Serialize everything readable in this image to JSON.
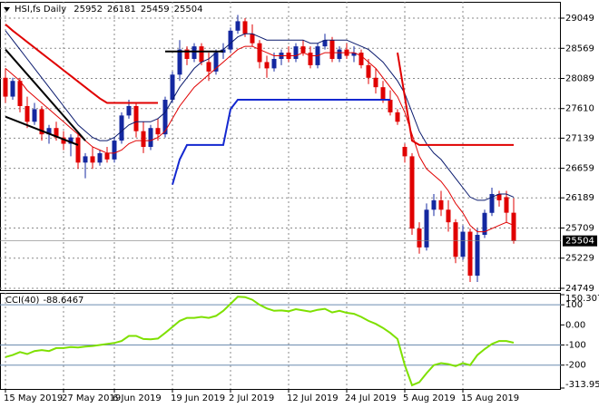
{
  "chart_data": {
    "type": "candlestick",
    "title": "HSI,fs Daily",
    "categories": [
      "15 May 2019",
      null,
      null,
      null,
      null,
      null,
      null,
      null,
      "27 May 2019",
      null,
      null,
      null,
      null,
      null,
      null,
      "6 Jun 2019",
      null,
      null,
      null,
      null,
      null,
      null,
      null,
      "19 Jun 2019",
      null,
      null,
      null,
      null,
      null,
      null,
      null,
      "2 Jul 2019",
      null,
      null,
      null,
      null,
      null,
      null,
      null,
      "12 Jul 2019",
      null,
      null,
      null,
      null,
      null,
      null,
      null,
      "24 Jul 2019",
      null,
      null,
      null,
      null,
      null,
      null,
      null,
      "5 Aug 2019",
      null,
      null,
      null,
      null,
      null,
      null,
      null,
      "15 Aug 2019",
      null,
      null,
      null,
      null,
      null,
      null,
      null
    ],
    "open": [
      28100,
      27800,
      28050,
      27650,
      27400,
      27600,
      27200,
      27300,
      27150,
      27050,
      27150,
      26750,
      26850,
      26750,
      26900,
      26800,
      27100,
      27500,
      27650,
      27250,
      27000,
      27300,
      27200,
      27750,
      28150,
      28550,
      28400,
      28600,
      28350,
      28200,
      28500,
      28550,
      28850,
      29000,
      28800,
      28650,
      28350,
      28250,
      28400,
      28500,
      28400,
      28600,
      28500,
      28300,
      28600,
      28700,
      28400,
      28550,
      28450,
      28500,
      28300,
      28100,
      27950,
      27750,
      27550,
      27000,
      26850,
      25700,
      25400,
      26000,
      26150,
      26000,
      25800,
      25250,
      25650,
      24950,
      25600,
      25950,
      26250,
      26200,
      25952
    ],
    "high": [
      28250,
      28100,
      28100,
      27800,
      27700,
      27650,
      27350,
      27400,
      27250,
      27200,
      27200,
      26900,
      27000,
      26950,
      27000,
      27150,
      27550,
      27750,
      27700,
      27400,
      27350,
      27450,
      27800,
      28200,
      28700,
      28600,
      28650,
      28650,
      28500,
      28550,
      28650,
      28900,
      29100,
      29050,
      28950,
      28700,
      28450,
      28500,
      28550,
      28600,
      28650,
      28700,
      28600,
      28650,
      28800,
      28750,
      28600,
      28650,
      28600,
      28550,
      28400,
      28250,
      28050,
      27900,
      27600,
      27050,
      26900,
      25800,
      26100,
      26250,
      26300,
      26150,
      25850,
      25750,
      25700,
      25700,
      26000,
      26350,
      26300,
      26300,
      26181
    ],
    "low": [
      27700,
      27750,
      27550,
      27300,
      27350,
      27100,
      27050,
      27100,
      26950,
      26850,
      26650,
      26500,
      26650,
      26700,
      26750,
      26750,
      27050,
      27450,
      27150,
      26900,
      26950,
      27100,
      27150,
      27700,
      28050,
      28300,
      28350,
      28300,
      28050,
      28150,
      28400,
      28500,
      28800,
      28750,
      28600,
      28250,
      28100,
      28200,
      28300,
      28350,
      28350,
      28450,
      28250,
      28250,
      28550,
      28350,
      28350,
      28400,
      28350,
      28250,
      28000,
      27850,
      27700,
      27500,
      27350,
      26750,
      25600,
      25300,
      25350,
      25900,
      25900,
      25650,
      25150,
      25200,
      24850,
      24850,
      25550,
      25900,
      26050,
      25800,
      25459
    ],
    "close": [
      27800,
      28050,
      27650,
      27400,
      27600,
      27200,
      27300,
      27150,
      27050,
      27150,
      26750,
      26850,
      26750,
      26900,
      26800,
      27100,
      27500,
      27650,
      27250,
      27000,
      27300,
      27200,
      27750,
      28150,
      28550,
      28400,
      28600,
      28350,
      28200,
      28500,
      28550,
      28850,
      29000,
      28800,
      28650,
      28350,
      28250,
      28400,
      28500,
      28400,
      28600,
      28500,
      28300,
      28600,
      28700,
      28400,
      28550,
      28450,
      28500,
      28300,
      28100,
      27950,
      27750,
      27550,
      27400,
      26850,
      25700,
      25400,
      26000,
      26150,
      26000,
      25800,
      25250,
      25650,
      24950,
      25600,
      25950,
      26250,
      26150,
      25952,
      25504
    ],
    "up_color": "#1428a0",
    "down_color": "#e00000",
    "ylim": [
      24720,
      29309
    ],
    "yticks": [
      29049,
      28569,
      28089,
      27610,
      27139,
      26659,
      26189,
      25709,
      25229,
      24749
    ],
    "grid": true,
    "overlays": [
      {
        "color": "#e00000",
        "width": 1,
        "values": [
          28250,
          28150,
          28050,
          27900,
          27800,
          27700,
          27600,
          27500,
          27400,
          27300,
          27200,
          27100,
          27000,
          26950,
          26900,
          26900,
          26950,
          27050,
          27100,
          27100,
          27100,
          27150,
          27250,
          27450,
          27650,
          27800,
          27950,
          28050,
          28150,
          28250,
          28350,
          28450,
          28550,
          28600,
          28600,
          28550,
          28500,
          28450,
          28450,
          28450,
          28450,
          28500,
          28450,
          28450,
          28500,
          28500,
          28500,
          28500,
          28500,
          28450,
          28350,
          28250,
          28100,
          27950,
          27800,
          27550,
          27200,
          26850,
          26650,
          26550,
          26450,
          26300,
          26100,
          25950,
          25750,
          25650,
          25650,
          25700,
          25750,
          25800,
          25750
        ]
      },
      {
        "color": "#0a1a6e",
        "width": 1,
        "values": [
          28850,
          28700,
          28550,
          28400,
          28250,
          28100,
          27950,
          27800,
          27650,
          27500,
          27350,
          27250,
          27150,
          27100,
          27100,
          27150,
          27250,
          27350,
          27400,
          27400,
          27400,
          27450,
          27550,
          27750,
          27950,
          28100,
          28250,
          28350,
          28400,
          28500,
          28550,
          28650,
          28750,
          28800,
          28800,
          28750,
          28700,
          28700,
          28700,
          28700,
          28700,
          28700,
          28650,
          28650,
          28700,
          28700,
          28700,
          28700,
          28650,
          28600,
          28550,
          28450,
          28350,
          28200,
          28050,
          27850,
          27550,
          27250,
          27050,
          26900,
          26800,
          26650,
          26500,
          26350,
          26200,
          26150,
          26150,
          26200,
          26250,
          26250,
          26200
        ]
      },
      {
        "color": "#e00000",
        "width": 2,
        "values": [
          28950,
          28850,
          28760,
          28670,
          28580,
          28490,
          28400,
          28310,
          28220,
          28130,
          28040,
          27950,
          27860,
          27770,
          27700,
          27700,
          27700,
          27700,
          27700,
          27700,
          27700,
          27700,
          null,
          null,
          null,
          null,
          null,
          null,
          null,
          null,
          null,
          null,
          null,
          null,
          null,
          null,
          null,
          null,
          null,
          null,
          null,
          null,
          null,
          null,
          null,
          null,
          null,
          null,
          null,
          null,
          null,
          null,
          null,
          null,
          28500,
          27800,
          27100,
          27030,
          27030,
          27030,
          27030,
          27030,
          27030,
          27030,
          27030,
          27030,
          27030,
          27030,
          27030,
          27030,
          27030
        ]
      },
      {
        "color": "#1428d0",
        "width": 2,
        "values": [
          null,
          null,
          null,
          null,
          null,
          null,
          null,
          null,
          null,
          null,
          null,
          null,
          null,
          null,
          null,
          null,
          null,
          null,
          null,
          null,
          null,
          null,
          null,
          26400,
          26800,
          27030,
          27030,
          27030,
          27030,
          27030,
          27030,
          27600,
          27750,
          27750,
          27750,
          27750,
          27750,
          27750,
          27750,
          27750,
          27750,
          27750,
          27750,
          27750,
          27750,
          27750,
          27750,
          27750,
          27750,
          27750,
          27750,
          27750,
          27750,
          27750,
          null,
          null,
          null,
          null,
          null,
          null,
          null,
          null,
          null,
          null,
          null,
          null,
          null,
          null,
          null,
          null,
          null
        ]
      },
      {
        "color": "#000000",
        "width": 2,
        "values": [
          null,
          null,
          null,
          null,
          null,
          null,
          null,
          null,
          null,
          null,
          null,
          null,
          null,
          null,
          null,
          null,
          null,
          null,
          null,
          null,
          null,
          null,
          28520,
          28520,
          28520,
          28520,
          28520,
          28520,
          28520,
          28520,
          28520,
          null,
          null,
          null,
          null,
          null,
          null,
          null,
          null,
          null,
          null,
          null,
          null,
          null,
          null,
          null,
          null,
          null,
          null,
          null,
          null,
          null,
          null,
          null,
          null,
          null,
          null,
          null,
          null,
          null,
          null,
          null,
          null,
          null,
          null,
          null,
          null,
          null,
          null,
          null,
          null
        ]
      }
    ],
    "lines": [
      {
        "color": "#000000",
        "x": [
          0,
          11
        ],
        "y": [
          28550,
          27100
        ]
      },
      {
        "color": "#000000",
        "x": [
          0,
          10
        ],
        "y": [
          27480,
          27030
        ]
      }
    ],
    "indicator": {
      "type": "line",
      "title": "CCI(40)",
      "color": "#7ee000",
      "values": [
        -160,
        -150,
        -135,
        -145,
        -130,
        -125,
        -130,
        -115,
        -115,
        -110,
        -112,
        -108,
        -105,
        -100,
        -95,
        -90,
        -80,
        -55,
        -55,
        -70,
        -72,
        -68,
        -40,
        -10,
        20,
        35,
        35,
        40,
        35,
        45,
        70,
        105,
        140,
        138,
        125,
        100,
        82,
        70,
        72,
        68,
        78,
        72,
        66,
        75,
        80,
        62,
        70,
        60,
        55,
        40,
        20,
        5,
        -15,
        -40,
        -70,
        -200,
        -300,
        -285,
        -240,
        -200,
        -190,
        -195,
        -205,
        -190,
        -200,
        -150,
        -120,
        -95,
        -80,
        -80,
        -88.6467
      ],
      "ylim": [
        -313.9501,
        150.3071
      ],
      "yticks": [
        150.3071,
        100,
        {
          "value": 0,
          "label": "0.00"
        },
        -100,
        -200,
        -313.9501
      ],
      "levels": [
        100,
        -100,
        -200
      ],
      "level_color": "#6c8cb0"
    }
  }
}
